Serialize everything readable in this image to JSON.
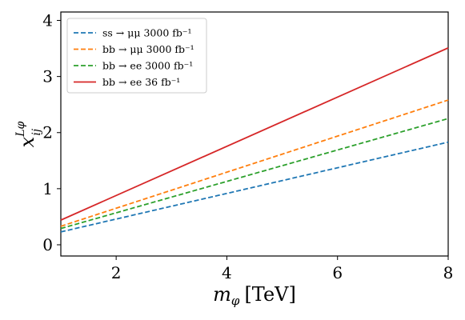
{
  "chart_data": {
    "type": "line",
    "xlabel_symbol": "m",
    "xlabel_subscript": "φ",
    "xlabel_unit": "[TeV]",
    "ylabel_symbol": "x",
    "ylabel_superscript": "Lφ",
    "ylabel_subscript": "ij",
    "xlim": [
      1,
      8
    ],
    "ylim": [
      -0.2,
      4.15
    ],
    "xticks": [
      2,
      4,
      6,
      8
    ],
    "yticks": [
      0,
      1,
      2,
      3,
      4
    ],
    "grid": false,
    "legend_position": "top-left",
    "series": [
      {
        "name": "ss → μμ 3000 fb⁻¹",
        "color": "#1f77b4",
        "dash": "dashed",
        "x": [
          1,
          8
        ],
        "y": [
          0.23,
          1.83
        ]
      },
      {
        "name": "bb → μμ 3000 fb⁻¹",
        "color": "#ff7f0e",
        "dash": "dashed",
        "x": [
          1,
          8
        ],
        "y": [
          0.33,
          2.58
        ]
      },
      {
        "name": "bb → ee 3000 fb⁻¹",
        "color": "#2ca02c",
        "dash": "dashed",
        "x": [
          1,
          8
        ],
        "y": [
          0.29,
          2.25
        ]
      },
      {
        "name": "bb → ee 36 fb⁻¹",
        "color": "#d62728",
        "dash": "solid",
        "x": [
          1,
          8
        ],
        "y": [
          0.44,
          3.51
        ]
      }
    ]
  }
}
